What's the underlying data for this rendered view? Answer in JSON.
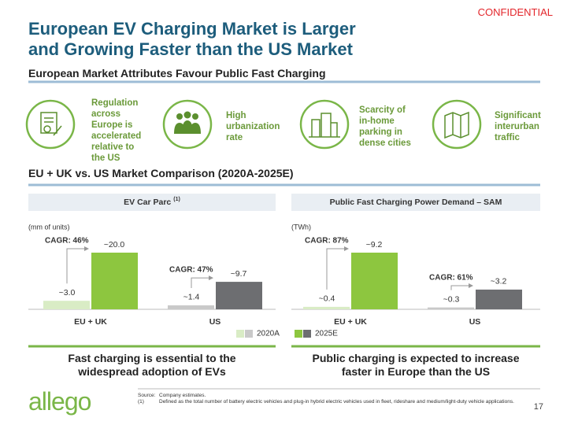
{
  "confidential": "CONFIDENTIAL",
  "title": "European EV Charging Market is Larger and Growing Faster than the US Market",
  "subtitle": "European Market Attributes Favour Public Fast Charging",
  "attributes": [
    "Regulation across Europe is accelerated relative to the US",
    "High urbanization rate",
    "Scarcity of in-home parking in dense cities",
    "Significant interurban traffic"
  ],
  "section_title": "EU + UK vs. US Market Comparison (2020A-2025E)",
  "chart_data": [
    {
      "type": "bar",
      "title": "EV Car Parc",
      "title_note": "(1)",
      "ylabel": "(mm of units)",
      "categories": [
        "EU + UK",
        "US"
      ],
      "series": [
        {
          "name": "2020A",
          "colors": [
            "#d9ecc5",
            "#c9c9c9"
          ],
          "values": [
            3.0,
            1.4
          ],
          "value_labels": [
            "~3.0",
            "~1.4"
          ]
        },
        {
          "name": "2025E",
          "colors": [
            "#8dc63f",
            "#6d6e71"
          ],
          "values": [
            20.0,
            9.7
          ],
          "value_labels": [
            "~20.0",
            "~9.7"
          ]
        }
      ],
      "annotations": [
        "CAGR: 46%",
        "CAGR: 47%"
      ]
    },
    {
      "type": "bar",
      "title": "Public Fast Charging Power Demand – SAM",
      "ylabel": "(TWh)",
      "categories": [
        "EU + UK",
        "US"
      ],
      "series": [
        {
          "name": "2020A",
          "colors": [
            "#d9ecc5",
            "#c9c9c9"
          ],
          "values": [
            0.4,
            0.3
          ],
          "value_labels": [
            "~0.4",
            "~0.3"
          ]
        },
        {
          "name": "2025E",
          "colors": [
            "#8dc63f",
            "#6d6e71"
          ],
          "values": [
            9.2,
            3.2
          ],
          "value_labels": [
            "~9.2",
            "~3.2"
          ]
        }
      ],
      "annotations": [
        "CAGR: 87%",
        "CAGR: 61%"
      ]
    }
  ],
  "takeaways": [
    "Fast charging is essential to the widespread adoption of EVs",
    "Public charging is expected to increase faster in Europe than the US"
  ],
  "source": {
    "label": "Source:",
    "text": "Company estimates."
  },
  "footnote": {
    "label": "(1)",
    "text": "Defined as the total number of battery electric vehicles and plug-in hybrid electric vehicles used in fleet, rideshare and medium/light-duty vehicle applications."
  },
  "logo": "allego",
  "page_number": "17"
}
